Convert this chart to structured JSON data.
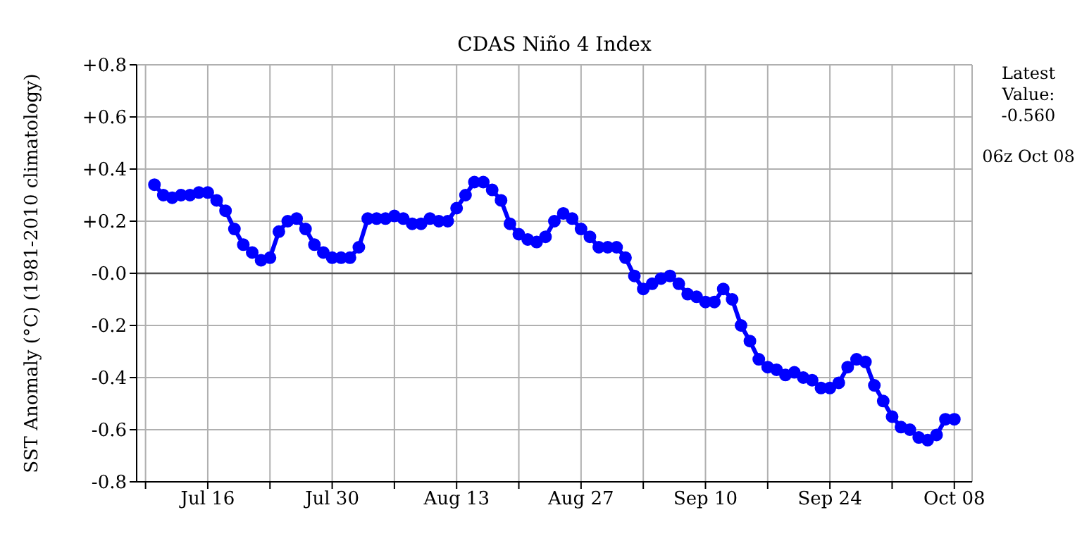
{
  "chart_data": {
    "type": "line",
    "title": "CDAS Niño 4 Index",
    "ylabel": "SST Anomaly (°C) (1981-2010 climatology)",
    "annotations": [
      "Latest Value: -0.560",
      "06z Oct 08"
    ],
    "x": [
      "--07-10",
      "--07-11",
      "--07-12",
      "--07-13",
      "--07-14",
      "--07-15",
      "--07-16",
      "--07-17",
      "--07-18",
      "--07-19",
      "--07-20",
      "--07-21",
      "--07-22",
      "--07-23",
      "--07-24",
      "--07-25",
      "--07-26",
      "--07-27",
      "--07-28",
      "--07-29",
      "--07-30",
      "--07-31",
      "--08-01",
      "--08-02",
      "--08-03",
      "--08-04",
      "--08-05",
      "--08-06",
      "--08-07",
      "--08-08",
      "--08-09",
      "--08-10",
      "--08-11",
      "--08-12",
      "--08-13",
      "--08-14",
      "--08-15",
      "--08-16",
      "--08-17",
      "--08-18",
      "--08-19",
      "--08-20",
      "--08-21",
      "--08-22",
      "--08-23",
      "--08-24",
      "--08-25",
      "--08-26",
      "--08-27",
      "--08-28",
      "--08-29",
      "--08-30",
      "--08-31",
      "--09-01",
      "--09-02",
      "--09-03",
      "--09-04",
      "--09-05",
      "--09-06",
      "--09-07",
      "--09-08",
      "--09-09",
      "--09-10",
      "--09-11",
      "--09-12",
      "--09-13",
      "--09-14",
      "--09-15",
      "--09-16",
      "--09-17",
      "--09-18",
      "--09-19",
      "--09-20",
      "--09-21",
      "--09-22",
      "--09-23",
      "--09-24",
      "--09-25",
      "--09-26",
      "--09-27",
      "--09-28",
      "--09-29",
      "--09-30",
      "--10-01",
      "--10-02",
      "--10-03",
      "--10-04",
      "--10-05",
      "--10-06",
      "--10-07",
      "--10-08"
    ],
    "series": [
      {
        "color": "#0000ff",
        "values": [
          0.34,
          0.3,
          0.29,
          0.3,
          0.3,
          0.31,
          0.31,
          0.28,
          0.24,
          0.17,
          0.11,
          0.08,
          0.05,
          0.06,
          0.16,
          0.2,
          0.21,
          0.17,
          0.11,
          0.08,
          0.06,
          0.06,
          0.06,
          0.1,
          0.21,
          0.21,
          0.21,
          0.22,
          0.21,
          0.19,
          0.19,
          0.21,
          0.2,
          0.2,
          0.25,
          0.3,
          0.35,
          0.35,
          0.32,
          0.28,
          0.19,
          0.15,
          0.13,
          0.12,
          0.14,
          0.2,
          0.23,
          0.21,
          0.17,
          0.14,
          0.1,
          0.1,
          0.1,
          0.06,
          -0.01,
          -0.06,
          -0.04,
          -0.02,
          -0.01,
          -0.04,
          -0.08,
          -0.09,
          -0.11,
          -0.11,
          -0.06,
          -0.1,
          -0.2,
          -0.26,
          -0.33,
          -0.36,
          -0.37,
          -0.39,
          -0.38,
          -0.4,
          -0.41,
          -0.44,
          -0.44,
          -0.42,
          -0.36,
          -0.33,
          -0.34,
          -0.43,
          -0.49,
          -0.55,
          -0.59,
          -0.6,
          -0.63,
          -0.64,
          -0.62,
          -0.56,
          -0.56
        ]
      }
    ],
    "xlim": [
      "--07-08",
      "--10-10"
    ],
    "xticks": [
      {
        "value": "--07-09",
        "label": null
      },
      {
        "value": "--07-16",
        "label": "Jul 16"
      },
      {
        "value": "--07-23",
        "label": null
      },
      {
        "value": "--07-30",
        "label": "Jul 30"
      },
      {
        "value": "--08-06",
        "label": null
      },
      {
        "value": "--08-13",
        "label": "Aug 13"
      },
      {
        "value": "--08-20",
        "label": null
      },
      {
        "value": "--08-27",
        "label": "Aug 27"
      },
      {
        "value": "--09-03",
        "label": null
      },
      {
        "value": "--09-10",
        "label": "Sep 10"
      },
      {
        "value": "--09-17",
        "label": null
      },
      {
        "value": "--09-24",
        "label": "Sep 24"
      },
      {
        "value": "--10-01",
        "label": null
      },
      {
        "value": "--10-08",
        "label": "Oct 08"
      }
    ],
    "ylim": [
      -0.8,
      0.8
    ],
    "yticks": [
      {
        "value": -0.8,
        "label": "-0.8"
      },
      {
        "value": -0.6,
        "label": "-0.6"
      },
      {
        "value": -0.4,
        "label": "-0.4"
      },
      {
        "value": -0.2,
        "label": "-0.2"
      },
      {
        "value": 0,
        "label": "-0.0"
      },
      {
        "value": 0.2,
        "label": "+0.2"
      },
      {
        "value": 0.4,
        "label": "+0.4"
      },
      {
        "value": 0.6,
        "label": "+0.6"
      },
      {
        "value": 0.8,
        "label": "+0.8"
      }
    ],
    "ref_lines": [
      {
        "axis": "y",
        "value": 0,
        "label": null,
        "color": "#555555"
      }
    ],
    "grid": true,
    "marker": "circle",
    "line_style": "solid"
  }
}
